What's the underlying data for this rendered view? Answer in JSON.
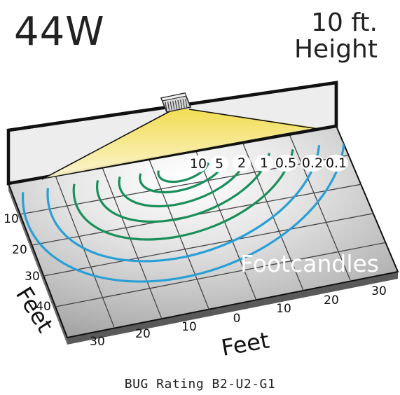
{
  "header": {
    "wattage": "44W",
    "height_value": "10 ft.",
    "height_label": "Height"
  },
  "contour_labels": [
    "10",
    "5",
    "2",
    "1",
    "0.5",
    "0.2",
    "0.1"
  ],
  "units_label": "Footcandles",
  "axes": {
    "right_ticks": [
      "30",
      "20",
      "10",
      "0",
      "10",
      "20",
      "30"
    ],
    "left_ticks": [
      "10",
      "20",
      "30",
      "40"
    ],
    "right_label": "Feet",
    "left_label": "Feet"
  },
  "bug_rating": "BUG Rating B2-U2-G1",
  "colors": {
    "inner_contours": "#1a8f5c",
    "outer_contours": "#2a9fd6",
    "beam": "#f4e06a",
    "floor": "#a9a9a9",
    "wall": "#ececec"
  }
}
